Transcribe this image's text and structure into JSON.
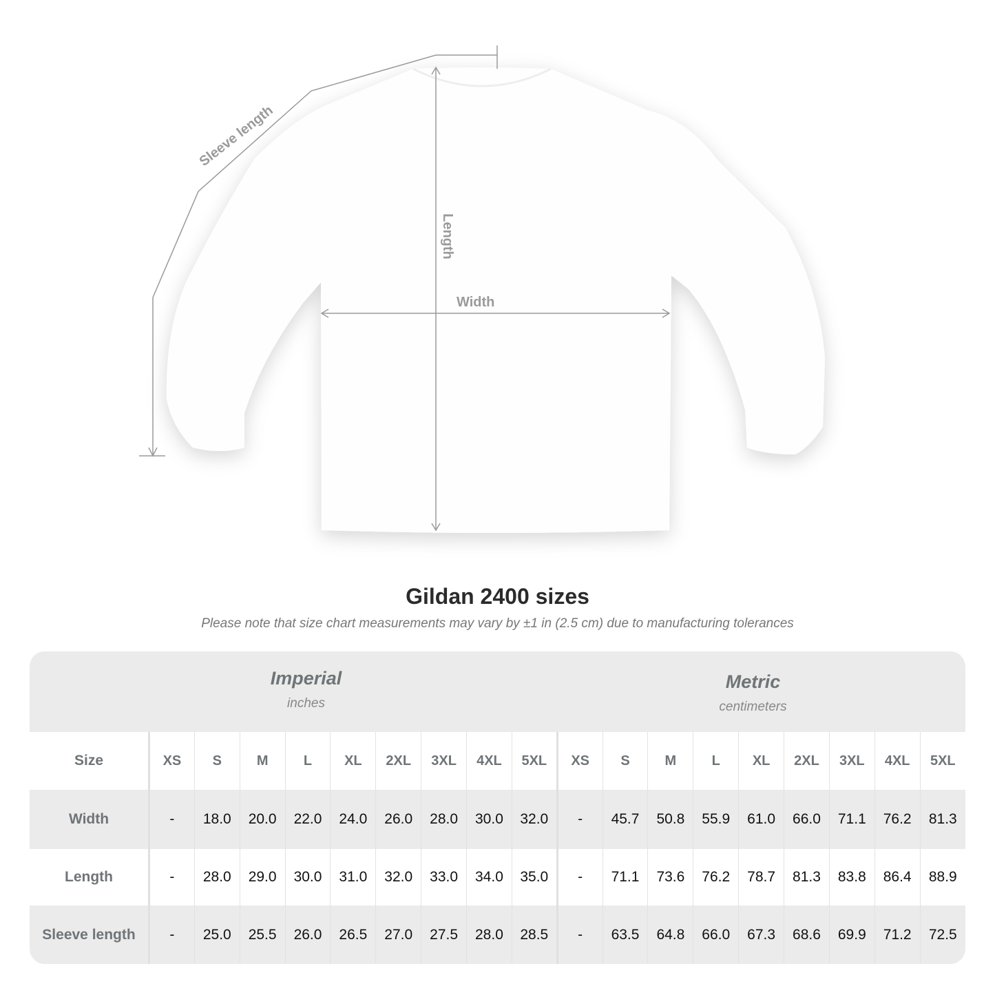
{
  "diagram": {
    "labels": {
      "sleeve": "Sleeve length",
      "length": "Length",
      "width": "Width"
    },
    "line_color": "#9a9a9a"
  },
  "title": "Gildan 2400 sizes",
  "note": "Please note that size chart measurements may vary by ±1 in (2.5 cm) due to manufacturing tolerances",
  "table": {
    "imperial": {
      "name": "Imperial",
      "unit": "inches"
    },
    "metric": {
      "name": "Metric",
      "unit": "centimeters"
    },
    "size_label": "Size",
    "sizes": [
      "XS",
      "S",
      "M",
      "L",
      "XL",
      "2XL",
      "3XL",
      "4XL",
      "5XL"
    ],
    "rows": [
      {
        "label": "Width",
        "imperial": [
          "-",
          "18.0",
          "20.0",
          "22.0",
          "24.0",
          "26.0",
          "28.0",
          "30.0",
          "32.0"
        ],
        "metric": [
          "-",
          "45.7",
          "50.8",
          "55.9",
          "61.0",
          "66.0",
          "71.1",
          "76.2",
          "81.3"
        ]
      },
      {
        "label": "Length",
        "imperial": [
          "-",
          "28.0",
          "29.0",
          "30.0",
          "31.0",
          "32.0",
          "33.0",
          "34.0",
          "35.0"
        ],
        "metric": [
          "-",
          "71.1",
          "73.6",
          "76.2",
          "78.7",
          "81.3",
          "83.8",
          "86.4",
          "88.9"
        ]
      },
      {
        "label": "Sleeve length",
        "imperial": [
          "-",
          "25.0",
          "25.5",
          "26.0",
          "26.5",
          "27.0",
          "27.5",
          "28.0",
          "28.5"
        ],
        "metric": [
          "-",
          "63.5",
          "64.8",
          "66.0",
          "67.3",
          "68.6",
          "69.9",
          "71.2",
          "72.5"
        ]
      }
    ],
    "colors": {
      "header_bg": "#ebebeb",
      "header_text": "#6f7477"
    }
  }
}
